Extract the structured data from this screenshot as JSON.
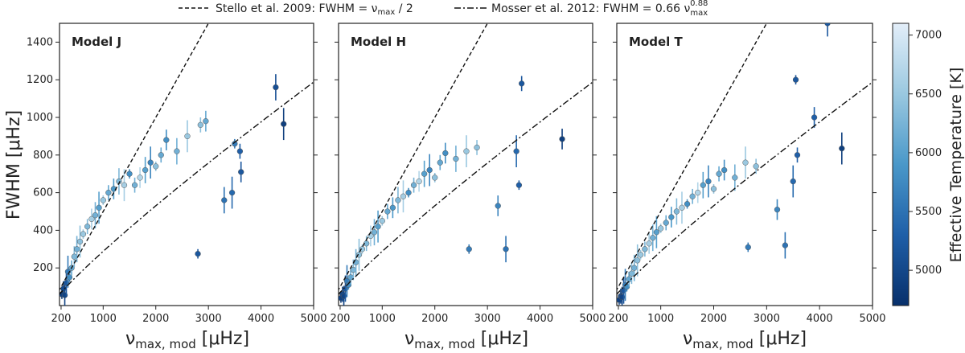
{
  "legend": {
    "entries": [
      {
        "style": "dashed",
        "label": "Stello et al. 2009: FWHM = ν",
        "sub": "max",
        "tail": " / 2"
      },
      {
        "style": "dashdot",
        "label": "Mosser et al. 2012: FWHM = 0.66 ν",
        "sub": "max",
        "sup": "0.88"
      }
    ]
  },
  "axes": {
    "xlabel_main": "ν",
    "xlabel_sub": "max, mod",
    "xlabel_unit": " [μHz]",
    "ylabel": "FWHM [μHz]",
    "xlim": [
      170,
      5000
    ],
    "ylim": [
      0,
      1500
    ],
    "xticks": [
      200,
      1000,
      2000,
      3000,
      4000,
      5000
    ],
    "yticks": [
      200,
      400,
      600,
      800,
      1000,
      1200,
      1400
    ]
  },
  "colorbar": {
    "label": "Effective Temperature [K]",
    "range": [
      4700,
      7100
    ],
    "ticks": [
      5000,
      5500,
      6000,
      6500,
      7000
    ],
    "colors": [
      "#08306b",
      "#1f5fa8",
      "#4a98c9",
      "#9ac8e0",
      "#e3eef9"
    ]
  },
  "chart_data": [
    {
      "type": "scatter",
      "panel": "Model J",
      "x": [
        215,
        245,
        270,
        300,
        330,
        360,
        400,
        450,
        500,
        560,
        620,
        700,
        780,
        850,
        920,
        1000,
        1100,
        1200,
        1300,
        1400,
        1500,
        1600,
        1700,
        1800,
        1900,
        2000,
        2100,
        2200,
        2400,
        2600,
        2800,
        2850,
        2950,
        3300,
        3450,
        3500,
        3600,
        3620,
        4280,
        4430
      ],
      "y": [
        60,
        90,
        55,
        120,
        180,
        150,
        200,
        260,
        300,
        340,
        380,
        420,
        460,
        480,
        520,
        560,
        600,
        620,
        660,
        640,
        700,
        640,
        680,
        720,
        760,
        740,
        800,
        880,
        820,
        900,
        275,
        960,
        980,
        560,
        600,
        860,
        820,
        710,
        1160,
        965
      ],
      "teff": [
        4900,
        5000,
        4950,
        5200,
        5600,
        5800,
        6100,
        6300,
        6200,
        6400,
        6500,
        6300,
        6600,
        6200,
        6000,
        6500,
        6100,
        5900,
        6300,
        6600,
        5800,
        6200,
        6700,
        6000,
        5700,
        6400,
        6100,
        5800,
        6200,
        6500,
        5200,
        6400,
        6100,
        5500,
        5400,
        5600,
        5300,
        5200,
        5100,
        4900
      ]
    },
    {
      "type": "scatter",
      "panel": "Model H",
      "x": [
        215,
        245,
        270,
        300,
        330,
        360,
        400,
        450,
        500,
        560,
        620,
        700,
        780,
        850,
        920,
        1000,
        1100,
        1200,
        1300,
        1400,
        1500,
        1600,
        1700,
        1800,
        1900,
        2000,
        2100,
        2200,
        2400,
        2600,
        2650,
        2800,
        3200,
        3350,
        3550,
        3600,
        3650,
        4420
      ],
      "y": [
        40,
        60,
        50,
        90,
        130,
        110,
        150,
        190,
        230,
        270,
        300,
        330,
        370,
        390,
        420,
        450,
        500,
        520,
        560,
        580,
        600,
        640,
        660,
        700,
        720,
        680,
        760,
        810,
        780,
        820,
        300,
        840,
        530,
        300,
        820,
        640,
        1180,
        885
      ],
      "teff": [
        4900,
        5000,
        4950,
        5200,
        5600,
        5800,
        6100,
        6300,
        6200,
        6400,
        6500,
        6300,
        6600,
        6200,
        6000,
        6500,
        6100,
        5900,
        6300,
        6600,
        5800,
        6200,
        6700,
        6000,
        5700,
        6400,
        6100,
        5800,
        6200,
        6500,
        5600,
        6400,
        5700,
        5500,
        5400,
        5300,
        5200,
        4900
      ]
    },
    {
      "type": "scatter",
      "panel": "Model T",
      "x": [
        215,
        245,
        270,
        300,
        330,
        360,
        400,
        450,
        500,
        560,
        620,
        700,
        780,
        850,
        920,
        1000,
        1100,
        1200,
        1300,
        1400,
        1500,
        1600,
        1700,
        1800,
        1900,
        2000,
        2100,
        2200,
        2400,
        2600,
        2650,
        2800,
        3200,
        3350,
        3500,
        3550,
        3580,
        3900,
        4150,
        4420
      ],
      "y": [
        30,
        50,
        45,
        80,
        110,
        100,
        140,
        170,
        200,
        240,
        270,
        300,
        330,
        360,
        390,
        410,
        440,
        470,
        500,
        520,
        540,
        580,
        600,
        640,
        660,
        620,
        700,
        720,
        680,
        760,
        310,
        740,
        510,
        320,
        660,
        1200,
        800,
        1000,
        1500,
        835
      ],
      "teff": [
        4900,
        5000,
        4950,
        5200,
        5600,
        5800,
        6100,
        6300,
        6200,
        6400,
        6500,
        6300,
        6600,
        6200,
        6000,
        6500,
        6100,
        5900,
        6300,
        6600,
        5800,
        6200,
        6700,
        6000,
        5700,
        6400,
        6100,
        5800,
        6200,
        6500,
        5600,
        6400,
        5700,
        5500,
        5400,
        5200,
        5300,
        5300,
        5200,
        4900
      ]
    }
  ]
}
